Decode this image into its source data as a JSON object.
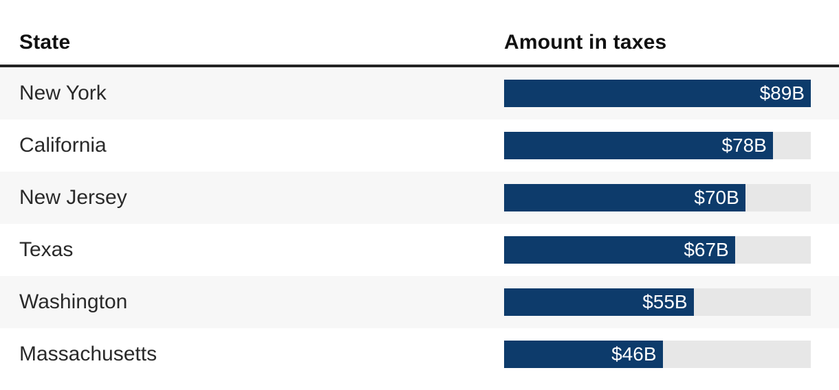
{
  "table": {
    "headers": {
      "state": "State",
      "amount": "Amount in taxes"
    }
  },
  "colors": {
    "bar": "#0d3b6b",
    "track": "#e7e7e7",
    "alt_row": "#f7f7f7",
    "rule": "#232323"
  },
  "chart_data": {
    "type": "bar",
    "orientation": "horizontal",
    "title": "",
    "column_headers": [
      "State",
      "Amount in taxes"
    ],
    "categories": [
      "New York",
      "California",
      "New Jersey",
      "Texas",
      "Washington",
      "Massachusetts"
    ],
    "values": [
      89,
      78,
      70,
      67,
      55,
      46
    ],
    "value_labels": [
      "$89B",
      "$78B",
      "$70B",
      "$67B",
      "$55B",
      "$46B"
    ],
    "value_unit": "billions of dollars",
    "xlim": [
      0,
      89
    ],
    "legend": "none",
    "grid": "off",
    "track_represents_max": 89
  }
}
